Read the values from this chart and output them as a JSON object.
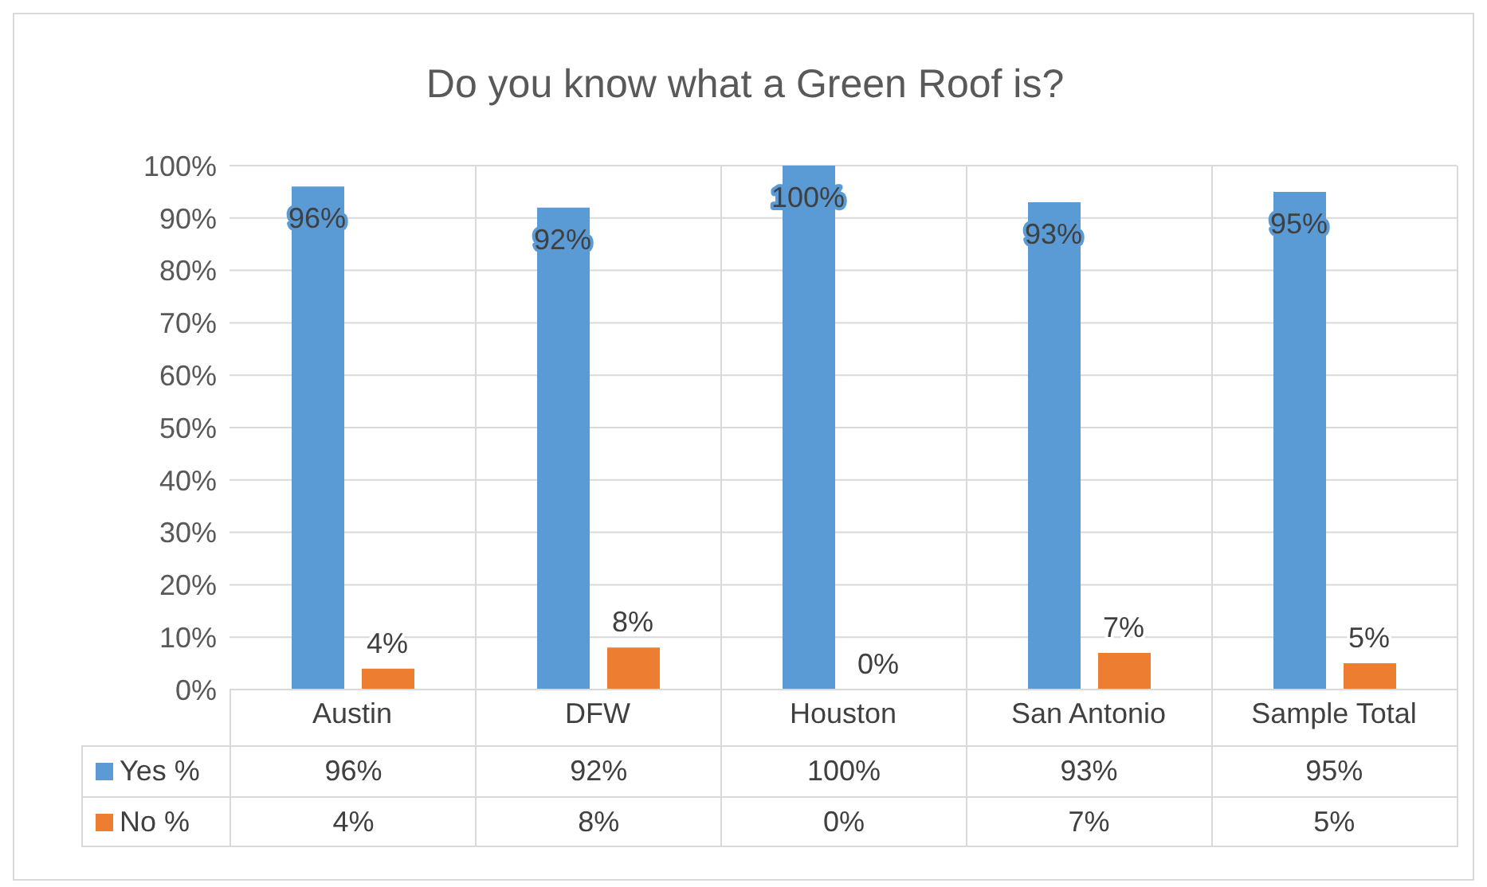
{
  "chart_data": {
    "type": "bar",
    "title": "Do you know  what a Green Roof is?",
    "categories": [
      "Austin",
      "DFW",
      "Houston",
      "San Antonio",
      "Sample Total"
    ],
    "series": [
      {
        "name": "Yes %",
        "color": "#5b9bd5",
        "values": [
          96,
          92,
          100,
          93,
          95
        ]
      },
      {
        "name": "No %",
        "color": "#ed7d31",
        "values": [
          4,
          8,
          0,
          7,
          5
        ]
      }
    ],
    "ylim": [
      0,
      100
    ],
    "yticks": [
      {
        "value": 0,
        "label": "0%"
      },
      {
        "value": 10,
        "label": "10%"
      },
      {
        "value": 20,
        "label": "20%"
      },
      {
        "value": 30,
        "label": "30%"
      },
      {
        "value": 40,
        "label": "40%"
      },
      {
        "value": 50,
        "label": "50%"
      },
      {
        "value": 60,
        "label": "60%"
      },
      {
        "value": 70,
        "label": "70%"
      },
      {
        "value": 80,
        "label": "80%"
      },
      {
        "value": 90,
        "label": "90%"
      },
      {
        "value": 100,
        "label": "100%"
      }
    ],
    "value_labels": [
      [
        "96%",
        "92%",
        "100%",
        "93%",
        "95%"
      ],
      [
        "4%",
        "8%",
        "0%",
        "7%",
        "5%"
      ]
    ],
    "grid": "y",
    "legend": "bottom"
  }
}
